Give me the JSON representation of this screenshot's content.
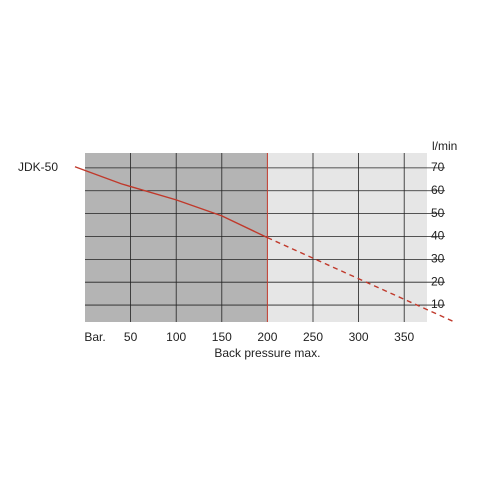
{
  "chart_data": {
    "type": "line",
    "y_unit": "l/min",
    "xlim": [
      0,
      375
    ],
    "ylim": [
      2.6,
      76.5
    ],
    "xticks": [
      {
        "value": 0,
        "label": "Bar."
      },
      50,
      100,
      150,
      200,
      250,
      300,
      350
    ],
    "yticks": [
      10,
      20,
      30,
      40,
      50,
      60,
      70
    ],
    "grid": true,
    "back_pressure_max": {
      "value": 200,
      "label": "Back pressure max.",
      "color": "#c0392b"
    },
    "series": [
      {
        "name": "JDK-50",
        "color": "#c0392b",
        "x": [
          -11,
          40,
          100,
          150,
          200,
          403
        ],
        "values": [
          70.5,
          63,
          56,
          49,
          39.5,
          3
        ]
      }
    ]
  }
}
